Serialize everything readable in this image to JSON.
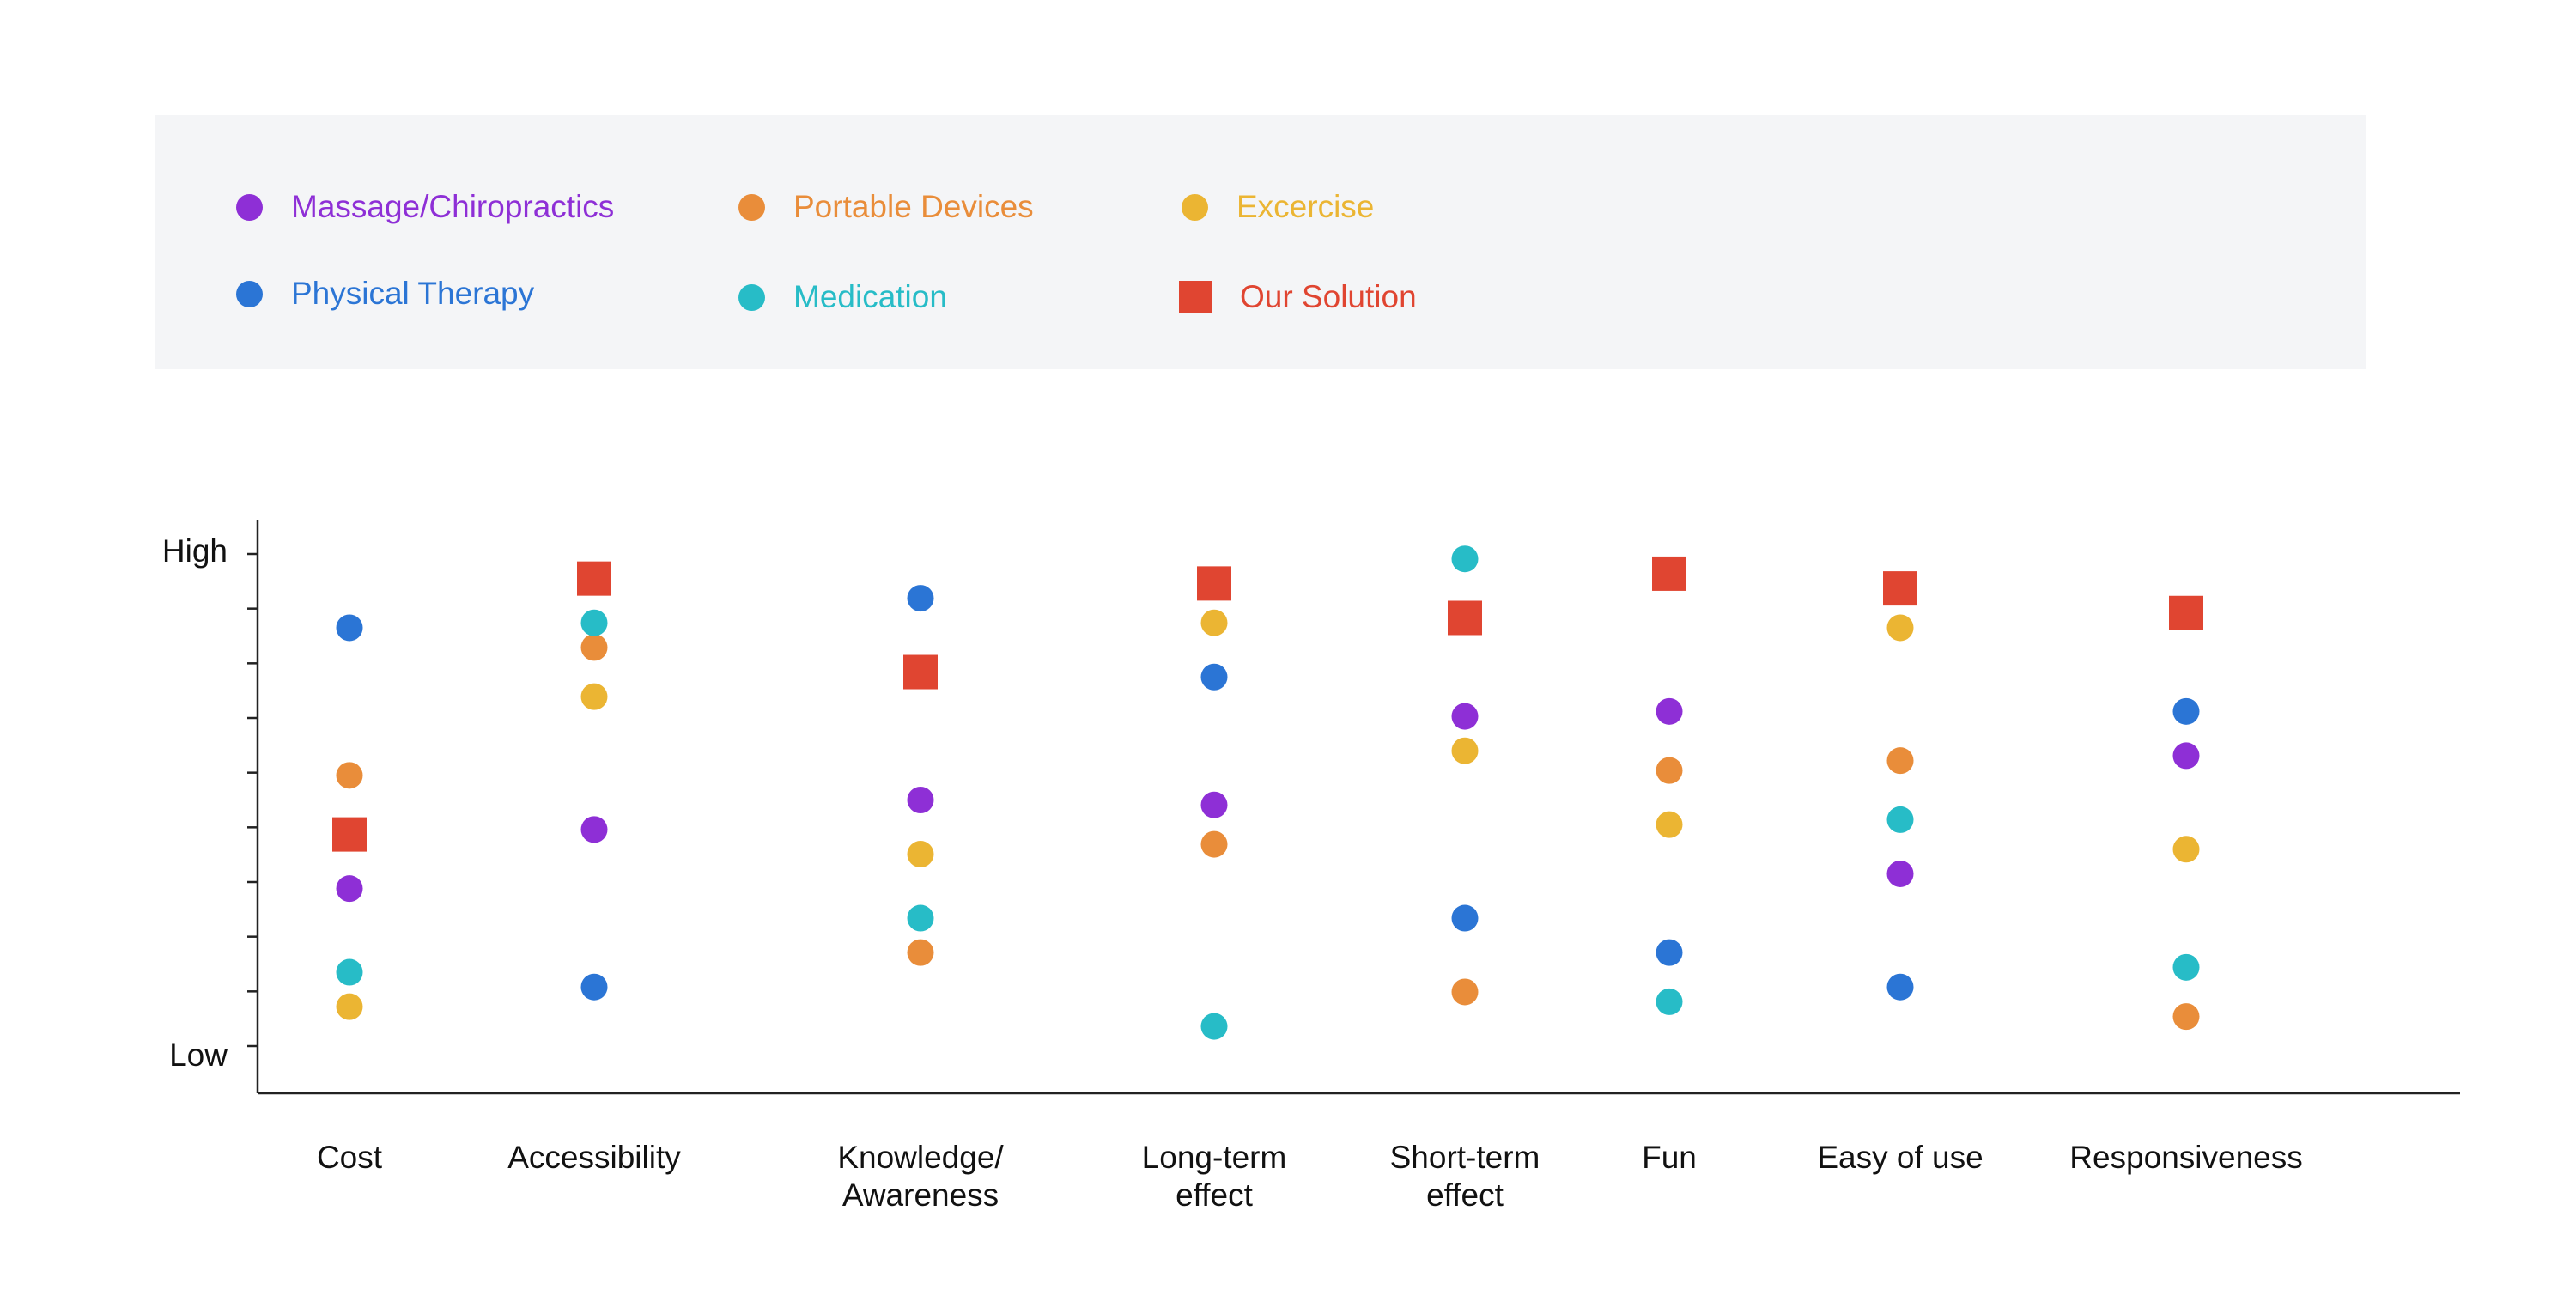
{
  "legend": [
    {
      "label": "Massage/Chiropractics",
      "color": "#8e2fd6",
      "shape": "circle"
    },
    {
      "label": "Portable Devices",
      "color": "#e98d3a",
      "shape": "circle"
    },
    {
      "label": "Excercise",
      "color": "#ebb533",
      "shape": "circle"
    },
    {
      "label": "Physical Therapy",
      "color": "#2b75d5",
      "shape": "circle"
    },
    {
      "label": "Medication",
      "color": "#27bcc7",
      "shape": "circle"
    },
    {
      "label": "Our Solution",
      "color": "#e04531",
      "shape": "square"
    }
  ],
  "chart_data": {
    "type": "scatter",
    "categories": [
      "Cost",
      "Accessibility",
      "Knowledge/\nAwareness",
      "Long-term\neffect",
      "Short-term\neffect",
      "Fun",
      "Easy of use",
      "Responsiveness"
    ],
    "y_tick_labels": {
      "high": "High",
      "low": "Low"
    },
    "ylim": [
      0,
      10
    ],
    "grid": false,
    "legend_position": "top",
    "series": [
      {
        "name": "Massage/Chiropractics",
        "color": "#8e2fd6",
        "shape": "circle",
        "values": [
          3.2,
          4.4,
          5.0,
          4.9,
          6.7,
          6.8,
          3.5,
          5.9
        ]
      },
      {
        "name": "Portable Devices",
        "color": "#e98d3a",
        "shape": "circle",
        "values": [
          5.5,
          8.1,
          1.9,
          4.1,
          1.1,
          5.6,
          5.8,
          0.6
        ]
      },
      {
        "name": "Excercise",
        "color": "#ebb533",
        "shape": "circle",
        "values": [
          0.8,
          7.1,
          3.9,
          8.6,
          6.0,
          4.5,
          8.5,
          4.0
        ]
      },
      {
        "name": "Physical Therapy",
        "color": "#2b75d5",
        "shape": "circle",
        "values": [
          8.5,
          1.2,
          9.1,
          7.5,
          2.6,
          1.9,
          1.2,
          6.8
        ]
      },
      {
        "name": "Medication",
        "color": "#27bcc7",
        "shape": "circle",
        "values": [
          1.5,
          8.6,
          2.6,
          0.4,
          9.9,
          0.9,
          4.6,
          1.6
        ]
      },
      {
        "name": "Our Solution",
        "color": "#e04531",
        "shape": "square",
        "values": [
          4.3,
          9.5,
          7.6,
          9.4,
          8.7,
          9.6,
          9.3,
          8.8
        ]
      }
    ]
  }
}
